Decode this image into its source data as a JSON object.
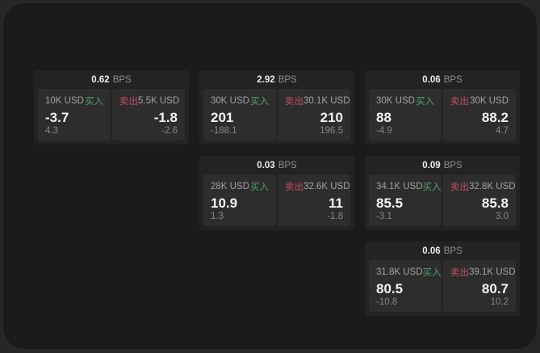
{
  "labels": {
    "bps_unit": "BPS",
    "buy": "买入",
    "sell": "卖出"
  },
  "colors": {
    "background_outer": "#272727",
    "background_panel": "#1b1b1b",
    "card_background": "#232323",
    "pane_background": "#2d2d2d",
    "buy_accent": "#4ea16b",
    "sell_accent": "#c25064",
    "main_text": "#f4f4f4",
    "muted_text": "#8f8f8f"
  },
  "cards": [
    {
      "bps": "0.62",
      "col": 1,
      "row": 1,
      "buy": {
        "amount": "10K USD",
        "value": "-3.7",
        "sub": "4.3"
      },
      "sell": {
        "amount": "5.5K USD",
        "value": "-1.8",
        "sub": "-2.6"
      }
    },
    {
      "bps": "2.92",
      "col": 2,
      "row": 1,
      "buy": {
        "amount": "30K USD",
        "value": "201",
        "sub": "-188.1"
      },
      "sell": {
        "amount": "30.1K USD",
        "value": "210",
        "sub": "196.5"
      }
    },
    {
      "bps": "0.06",
      "col": 3,
      "row": 1,
      "buy": {
        "amount": "30K USD",
        "value": "88",
        "sub": "-4.9"
      },
      "sell": {
        "amount": "30K USD",
        "value": "88.2",
        "sub": "4.7"
      }
    },
    {
      "bps": "0.03",
      "col": 2,
      "row": 2,
      "buy": {
        "amount": "28K USD",
        "value": "10.9",
        "sub": "1.3"
      },
      "sell": {
        "amount": "32.6K USD",
        "value": "11",
        "sub": "-1.8"
      }
    },
    {
      "bps": "0.09",
      "col": 3,
      "row": 2,
      "buy": {
        "amount": "34.1K USD",
        "value": "85.5",
        "sub": "-3.1"
      },
      "sell": {
        "amount": "32.8K USD",
        "value": "85.8",
        "sub": "3.0"
      }
    },
    {
      "bps": "0.06",
      "col": 3,
      "row": 3,
      "buy": {
        "amount": "31.8K USD",
        "value": "80.5",
        "sub": "-10.8"
      },
      "sell": {
        "amount": "39.1K USD",
        "value": "80.7",
        "sub": "10.2"
      }
    }
  ]
}
